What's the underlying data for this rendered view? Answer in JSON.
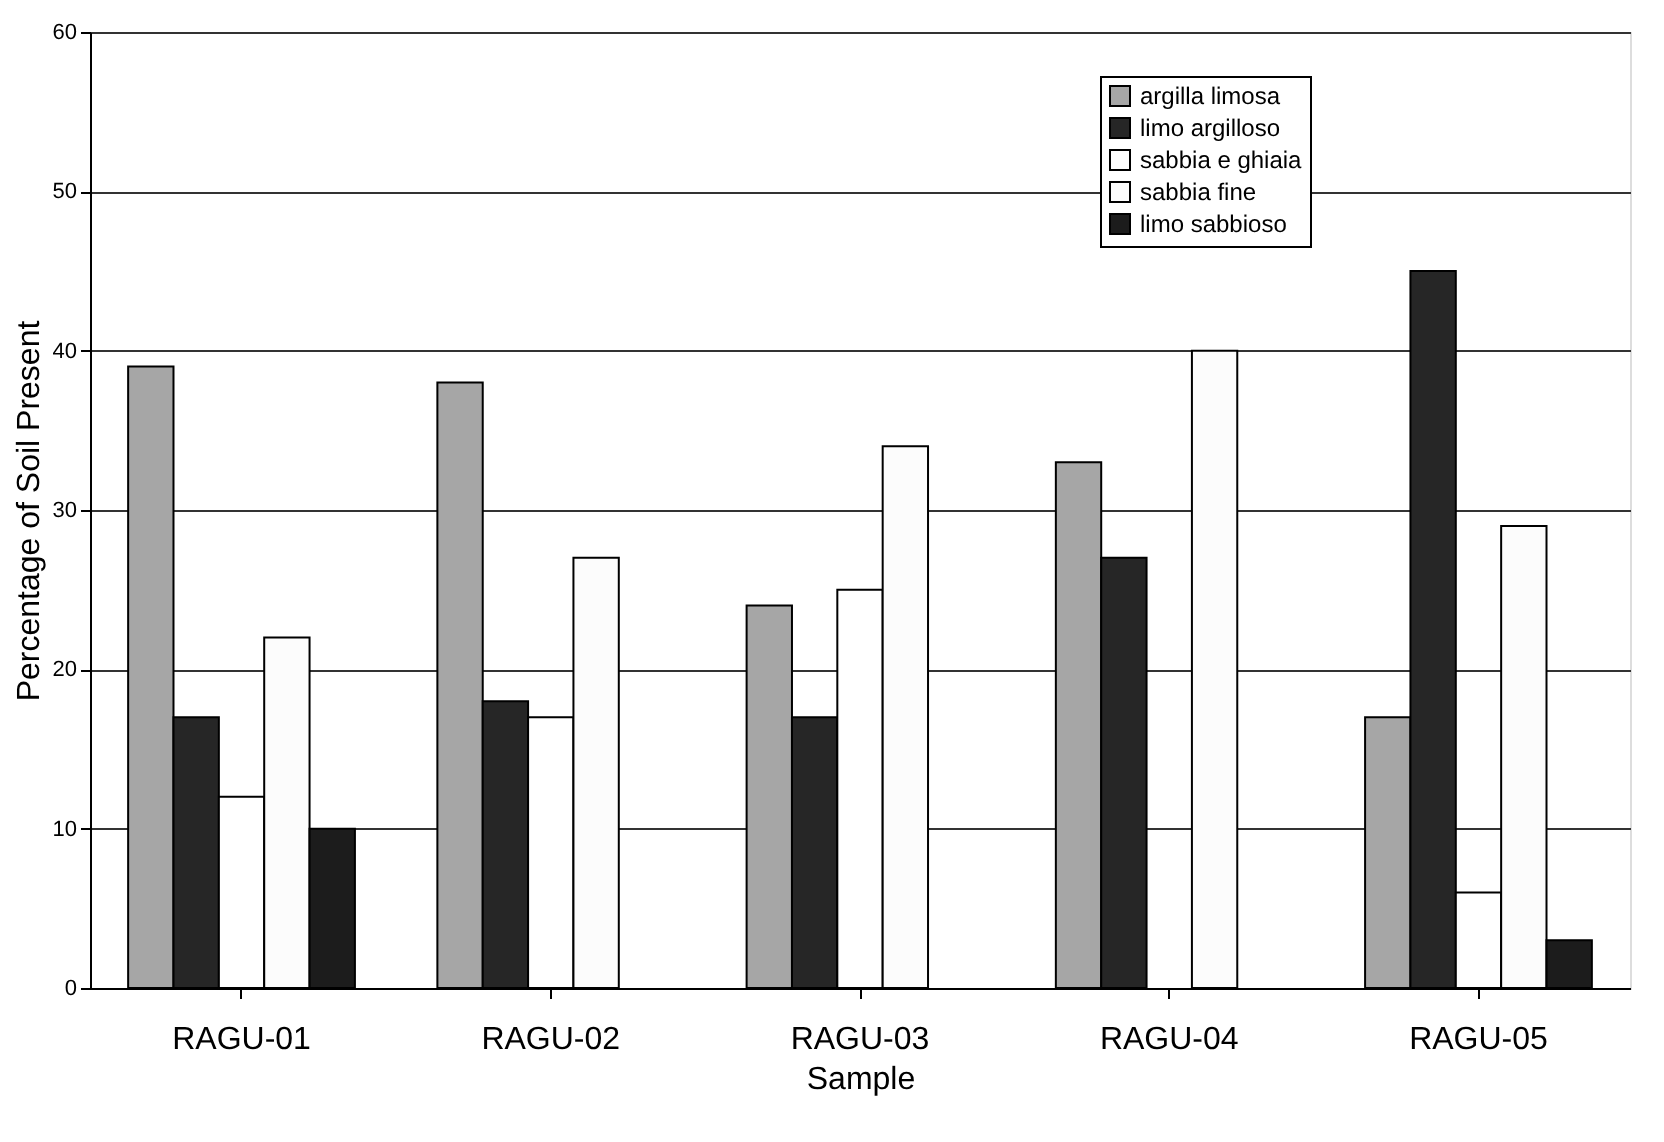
{
  "chart_data": {
    "type": "bar",
    "xlabel": "Sample",
    "ylabel": "Percentage of Soil Present",
    "categories": [
      "RAGU-01",
      "RAGU-02",
      "RAGU-03",
      "RAGU-04",
      "RAGU-05"
    ],
    "series": [
      {
        "name": "argilla limosa",
        "color": "#a6a6a6",
        "values": [
          39,
          38,
          24,
          33,
          17
        ]
      },
      {
        "name": "limo argilloso",
        "color": "#262626",
        "values": [
          17,
          18,
          17,
          27,
          45
        ]
      },
      {
        "name": "sabbia e ghiaia",
        "color": "#ffffff",
        "values": [
          12,
          17,
          25,
          null,
          6
        ]
      },
      {
        "name": "sabbia fine",
        "color": "#fcfcfc",
        "values": [
          22,
          27,
          34,
          40,
          29
        ]
      },
      {
        "name": "limo sabbioso",
        "color": "#1c1c1c",
        "values": [
          10,
          null,
          null,
          null,
          3
        ]
      }
    ],
    "ylim": [
      0,
      60
    ],
    "yticks": [
      0,
      10,
      20,
      30,
      40,
      50,
      60
    ],
    "grid": "y",
    "legend": "top right"
  }
}
